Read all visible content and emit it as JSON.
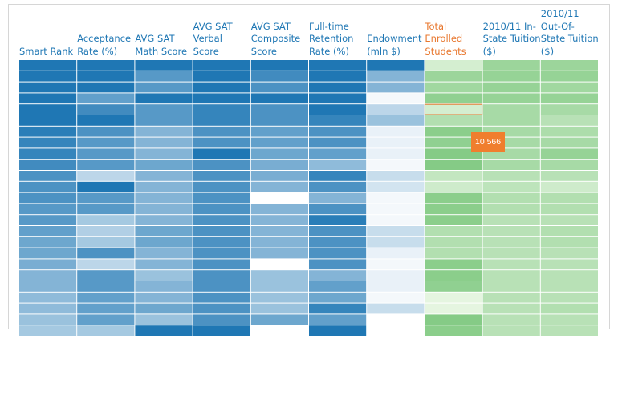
{
  "chart_data": {
    "type": "heatmap",
    "title": "",
    "columns": [
      {
        "label": "Smart Rank",
        "palette": "blue",
        "active": false
      },
      {
        "label": "Acceptance Rate (%)",
        "palette": "blue",
        "active": false
      },
      {
        "label": "AVG SAT Math Score",
        "palette": "blue",
        "active": false
      },
      {
        "label": "AVG SAT Verbal Score",
        "palette": "blue",
        "active": false
      },
      {
        "label": "AVG SAT Composite Score",
        "palette": "blue",
        "active": false
      },
      {
        "label": "Full-time Retention Rate (%)",
        "palette": "blue",
        "active": false
      },
      {
        "label": "Endowment (mln $)",
        "palette": "blue",
        "active": false
      },
      {
        "label": "Total Enrolled Students",
        "palette": "green",
        "active": true
      },
      {
        "label": "2010/11 In-State Tuition ($)",
        "palette": "green",
        "active": false
      },
      {
        "label": "2010/11 Out-Of-State Tuition ($)",
        "palette": "green",
        "active": false
      }
    ],
    "color_scale": {
      "blue": [
        "#ffffff",
        "#1f77b4"
      ],
      "green": [
        "#e5f5e0",
        "#74c476"
      ]
    },
    "intensities": [
      [
        1.0,
        1.0,
        1.0,
        1.0,
        1.0,
        1.0,
        1.0,
        0.15,
        0.65,
        0.65
      ],
      [
        1.0,
        1.0,
        0.75,
        1.0,
        0.85,
        1.0,
        0.55,
        0.65,
        0.7,
        0.7
      ],
      [
        1.0,
        1.0,
        0.75,
        1.0,
        0.8,
        1.0,
        0.55,
        0.6,
        0.7,
        0.6
      ],
      [
        1.0,
        0.7,
        1.0,
        1.0,
        1.0,
        1.0,
        0.05,
        0.75,
        0.7,
        0.7
      ],
      [
        1.0,
        0.85,
        0.75,
        0.9,
        0.8,
        1.0,
        0.3,
        0.15,
        0.55,
        0.55
      ],
      [
        1.0,
        1.0,
        0.75,
        0.9,
        0.8,
        0.9,
        0.45,
        0.45,
        0.55,
        0.4
      ],
      [
        0.95,
        0.8,
        0.55,
        0.8,
        0.7,
        0.8,
        0.1,
        0.8,
        0.55,
        0.5
      ],
      [
        0.9,
        0.75,
        0.55,
        0.8,
        0.7,
        0.8,
        0.1,
        0.75,
        0.55,
        0.55
      ],
      [
        0.9,
        0.75,
        0.55,
        1.0,
        0.65,
        0.7,
        0.1,
        0.85,
        0.55,
        0.7
      ],
      [
        0.85,
        0.75,
        0.65,
        0.8,
        0.6,
        0.5,
        0.05,
        0.85,
        0.55,
        0.55
      ],
      [
        0.8,
        0.3,
        0.55,
        0.8,
        0.6,
        0.9,
        0.25,
        0.3,
        0.4,
        0.4
      ],
      [
        0.8,
        1.0,
        0.55,
        0.8,
        0.55,
        0.8,
        0.2,
        0.2,
        0.35,
        0.2
      ],
      [
        0.8,
        0.75,
        0.55,
        0.8,
        0.0,
        0.55,
        0.05,
        0.8,
        0.45,
        0.45
      ],
      [
        0.75,
        0.75,
        0.55,
        0.8,
        0.55,
        0.8,
        0.05,
        0.8,
        0.45,
        0.45
      ],
      [
        0.75,
        0.4,
        0.55,
        0.8,
        0.55,
        0.95,
        0.05,
        0.8,
        0.4,
        0.4
      ],
      [
        0.7,
        0.35,
        0.65,
        0.8,
        0.55,
        0.8,
        0.25,
        0.45,
        0.4,
        0.45
      ],
      [
        0.65,
        0.4,
        0.65,
        0.8,
        0.55,
        0.8,
        0.25,
        0.45,
        0.4,
        0.45
      ],
      [
        0.65,
        0.8,
        0.55,
        0.8,
        0.55,
        0.8,
        0.1,
        0.45,
        0.4,
        0.4
      ],
      [
        0.6,
        0.3,
        0.55,
        0.8,
        0.0,
        0.8,
        0.05,
        0.8,
        0.4,
        0.4
      ],
      [
        0.55,
        0.75,
        0.45,
        0.8,
        0.45,
        0.55,
        0.1,
        0.8,
        0.4,
        0.4
      ],
      [
        0.55,
        0.75,
        0.55,
        0.8,
        0.45,
        0.7,
        0.1,
        0.75,
        0.4,
        0.4
      ],
      [
        0.5,
        0.7,
        0.55,
        0.8,
        0.45,
        0.65,
        0.05,
        0.0,
        0.4,
        0.4
      ],
      [
        0.5,
        0.7,
        0.65,
        0.8,
        0.45,
        0.9,
        0.25,
        0.0,
        0.4,
        0.45
      ],
      [
        0.45,
        0.7,
        0.45,
        0.8,
        0.65,
        0.7,
        0.0,
        0.85,
        0.4,
        0.4
      ],
      [
        0.4,
        0.4,
        1.0,
        1.0,
        0.0,
        1.0,
        0.0,
        0.8,
        0.4,
        0.4
      ]
    ],
    "highlight": {
      "row": 4,
      "column": 7
    },
    "tooltip": {
      "value": "10 566",
      "row": 7,
      "column": 7
    }
  }
}
